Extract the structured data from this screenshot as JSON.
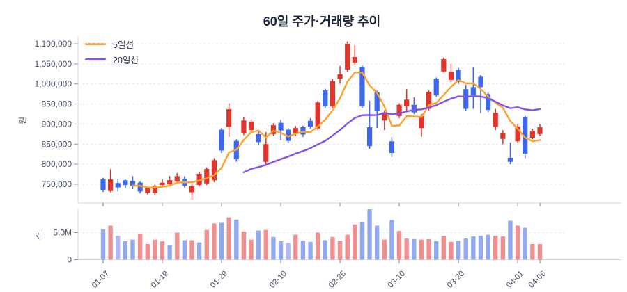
{
  "title": "60일 주가·거래량 추이",
  "legend": {
    "ma5": "5일선",
    "ma20": "20일선"
  },
  "colors": {
    "up": "#e0342c",
    "down": "#3c68ee",
    "vol_up": "#f09090",
    "vol_down": "#93aaf0",
    "vol_neutral": "#b3b9f2",
    "ma5": "#ffa128",
    "ma20": "#8152ef",
    "grid": "#e5e7eb",
    "axis_line": "#d2d6dd",
    "tick": "#8d95a3",
    "text": "#475166",
    "title": "#1b2438"
  },
  "chart_data": {
    "type": "candlestick+volume",
    "title": "60일 주가·거래량 추이",
    "y_axis": {
      "label": "원",
      "range": [
        730000,
        1115000
      ],
      "ticks": [
        {
          "v": 1100000,
          "label": "1,100,000"
        },
        {
          "v": 1050000,
          "label": "1,050,000"
        },
        {
          "v": 1000000,
          "label": "1,000,000"
        },
        {
          "v": 950000,
          "label": "950,000"
        },
        {
          "v": 900000,
          "label": "900,000"
        },
        {
          "v": 850000,
          "label": "850,000"
        },
        {
          "v": 800000,
          "label": "800,000"
        },
        {
          "v": 750000,
          "label": "750,000"
        }
      ]
    },
    "volume_axis": {
      "label": "주",
      "unit": "millions of shares",
      "ticks": [
        {
          "m": 5,
          "label": "5.0M"
        },
        {
          "m": 0,
          "label": "0"
        }
      ]
    },
    "x_tick_labels": [
      {
        "i": 0,
        "label": "01-07"
      },
      {
        "i": 8,
        "label": "01-19"
      },
      {
        "i": 16,
        "label": "01-29"
      },
      {
        "i": 24,
        "label": "02-10"
      },
      {
        "i": 32,
        "label": "02-25"
      },
      {
        "i": 40,
        "label": "03-10"
      },
      {
        "i": 48,
        "label": "03-20"
      },
      {
        "i": 56,
        "label": "04-01"
      },
      {
        "i": 59,
        "label": "04-06"
      }
    ],
    "overlays": [
      {
        "label": "5일선",
        "type": "sma",
        "window": 5,
        "color_key": "ma5"
      },
      {
        "label": "20일선",
        "type": "sma",
        "window": 20,
        "color_key": "ma20"
      }
    ],
    "series": {
      "o": [
        762000,
        733000,
        753000,
        760000,
        758000,
        754000,
        729000,
        728000,
        748000,
        750000,
        757000,
        764000,
        730000,
        748000,
        752000,
        760000,
        886000,
        893000,
        858000,
        877000,
        885000,
        875000,
        806000,
        875000,
        903000,
        886000,
        877000,
        892000,
        908000,
        889000,
        984000,
        944000,
        1013000,
        1036000,
        1053000,
        1042000,
        892000,
        979000,
        909000,
        857000,
        920000,
        944000,
        948000,
        890000,
        938000,
        1013000,
        1031000,
        1010000,
        1035000,
        987000,
        992000,
        1018000,
        975000,
        893000,
        863000,
        816000,
        857000,
        918000,
        866000,
        875000
      ],
      "c": [
        735000,
        762000,
        742000,
        748000,
        746000,
        732000,
        740000,
        746000,
        754000,
        760000,
        770000,
        746000,
        745000,
        776000,
        788000,
        810000,
        834000,
        937000,
        812000,
        909000,
        906000,
        855000,
        850000,
        897000,
        884000,
        858000,
        890000,
        874000,
        893000,
        954000,
        944000,
        1007000,
        1024000,
        1100000,
        1067000,
        944000,
        845000,
        932000,
        929000,
        828000,
        948000,
        961000,
        929000,
        920000,
        980000,
        972000,
        1062000,
        1030000,
        1005000,
        938000,
        972000,
        992000,
        935000,
        928000,
        877000,
        806000,
        894000,
        826000,
        883000,
        892000
      ],
      "h": [
        766000,
        788000,
        763000,
        762000,
        770000,
        757000,
        744000,
        749000,
        762000,
        770000,
        778000,
        770000,
        750000,
        780000,
        792000,
        815000,
        890000,
        952000,
        862000,
        918000,
        912000,
        886000,
        880000,
        902000,
        910000,
        890000,
        895000,
        896000,
        915000,
        958000,
        988000,
        1012000,
        1045000,
        1106000,
        1097000,
        1046000,
        958000,
        983000,
        934000,
        868000,
        952000,
        987000,
        967000,
        925000,
        984000,
        1016000,
        1066000,
        1050000,
        1040000,
        998000,
        1042000,
        1022000,
        978000,
        938000,
        885000,
        854000,
        900000,
        920000,
        888000,
        900000
      ],
      "l": [
        731000,
        730000,
        732000,
        740000,
        738000,
        727000,
        725000,
        724000,
        745000,
        748000,
        754000,
        742000,
        712000,
        745000,
        748000,
        755000,
        828000,
        868000,
        806000,
        872000,
        880000,
        848000,
        800000,
        870000,
        860000,
        852000,
        870000,
        868000,
        888000,
        885000,
        940000,
        940000,
        1000000,
        1030000,
        1048000,
        940000,
        838000,
        890000,
        885000,
        818000,
        915000,
        932000,
        925000,
        868000,
        934000,
        968000,
        1028000,
        1004000,
        1000000,
        932000,
        938000,
        927000,
        930000,
        885000,
        850000,
        800000,
        852000,
        815000,
        862000,
        870000
      ],
      "dir": [
        "d",
        "u",
        "d",
        "d",
        "d",
        "d",
        "u",
        "u",
        "u",
        "u",
        "u",
        "d",
        "u",
        "u",
        "u",
        "u",
        "d",
        "u",
        "d",
        "u",
        "u",
        "d",
        "u",
        "u",
        "d",
        "d",
        "u",
        "d",
        "d",
        "u",
        "d",
        "u",
        "u",
        "u",
        "u",
        "d",
        "d",
        "d",
        "u",
        "d",
        "u",
        "u",
        "d",
        "u",
        "u",
        "d",
        "u",
        "u",
        "d",
        "d",
        "d",
        "d",
        "d",
        "u",
        "u",
        "d",
        "u",
        "d",
        "u",
        "u"
      ],
      "volume_millions": [
        5.6,
        6.3,
        4.4,
        3.4,
        3.7,
        4.8,
        2.9,
        3.7,
        3.4,
        2.7,
        5.0,
        3.6,
        3.6,
        3.2,
        5.5,
        6.7,
        6.8,
        7.8,
        7.4,
        5.2,
        3.7,
        5.4,
        5.5,
        4.2,
        3.4,
        3.1,
        4.6,
        3.5,
        3.3,
        5.0,
        3.6,
        4.2,
        3.5,
        4.6,
        6.5,
        6.9,
        9.3,
        6.3,
        3.7,
        7.3,
        5.3,
        3.9,
        3.8,
        3.7,
        3.8,
        3.4,
        4.4,
        3.3,
        3.5,
        3.9,
        4.3,
        4.4,
        4.6,
        4.4,
        4.3,
        7.2,
        6.3,
        5.9,
        2.9,
        2.9
      ],
      "volume_dir": [
        "d",
        "u",
        "n",
        "d",
        "d",
        "u",
        "u",
        "u",
        "u",
        "d",
        "u",
        "d",
        "u",
        "d",
        "u",
        "u",
        "d",
        "u",
        "d",
        "u",
        "u",
        "d",
        "u",
        "d",
        "d",
        "n",
        "u",
        "d",
        "d",
        "u",
        "d",
        "u",
        "u",
        "u",
        "u",
        "d",
        "d",
        "d",
        "u",
        "d",
        "u",
        "u",
        "d",
        "u",
        "u",
        "d",
        "u",
        "u",
        "d",
        "d",
        "d",
        "d",
        "d",
        "u",
        "u",
        "d",
        "u",
        "d",
        "u",
        "u"
      ]
    }
  }
}
